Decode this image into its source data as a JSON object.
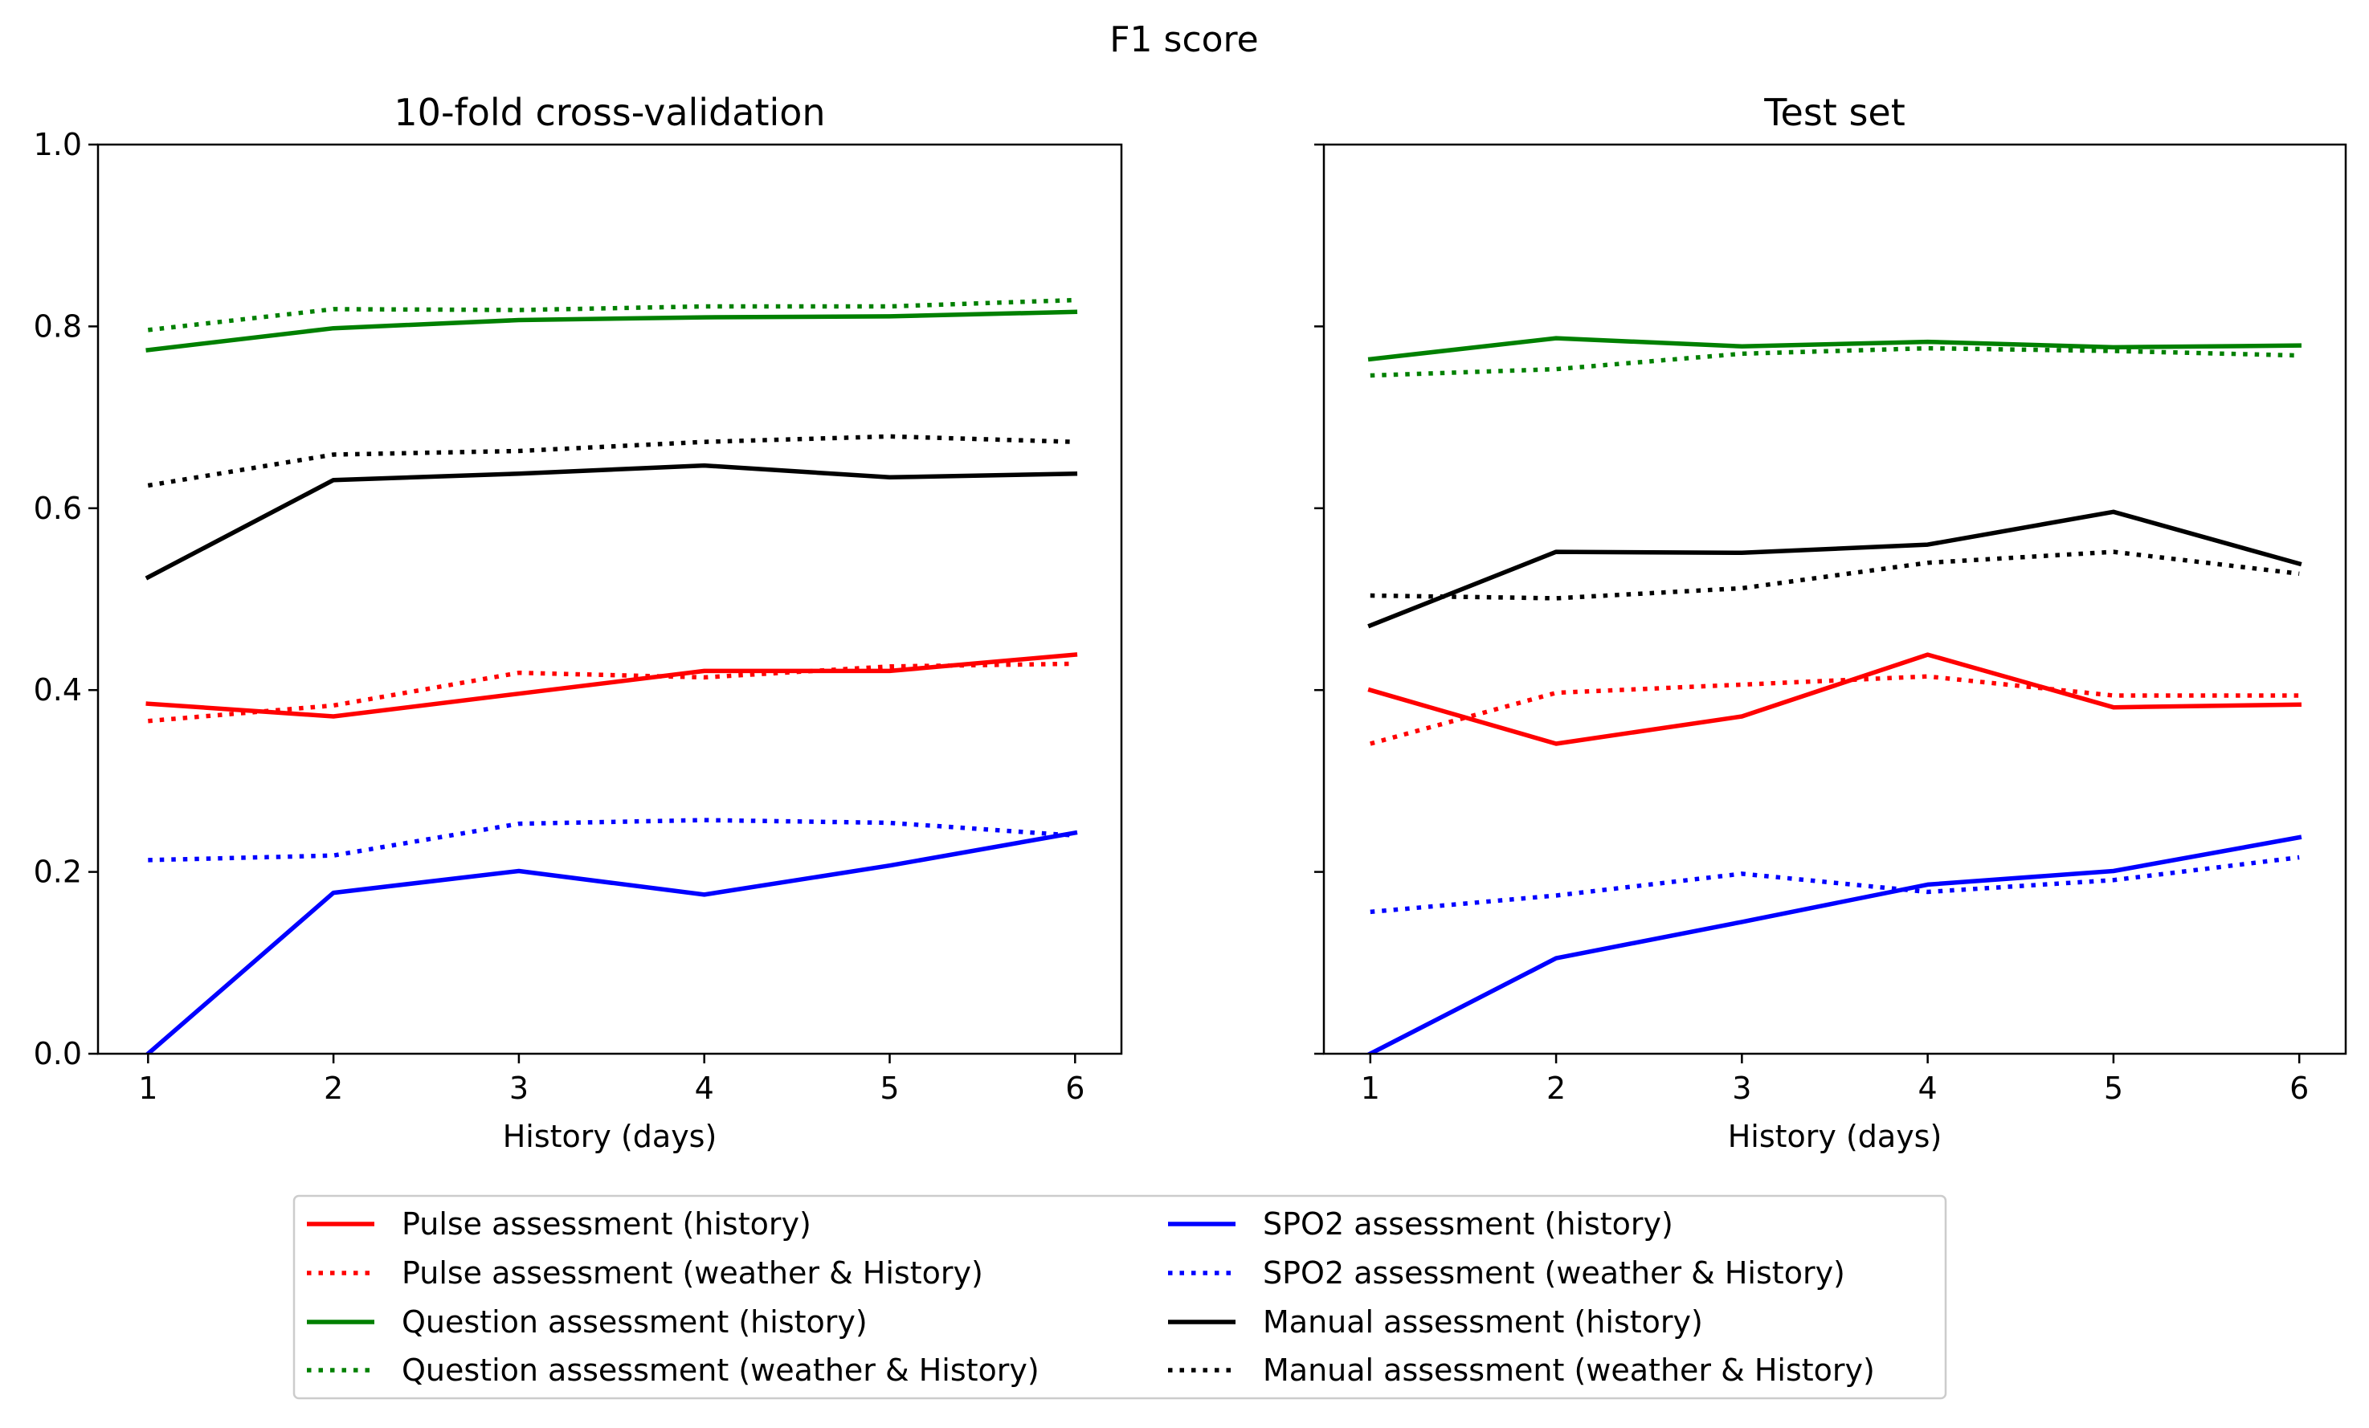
{
  "figure_title": "F1 score",
  "chart_data": [
    {
      "type": "line",
      "title": "10-fold cross-validation",
      "xlabel": "History (days)",
      "ylabel": "",
      "x": [
        1,
        2,
        3,
        4,
        5,
        6
      ],
      "xticks": [
        "1",
        "2",
        "3",
        "4",
        "5",
        "6"
      ],
      "yticks": [
        "0.0",
        "0.2",
        "0.4",
        "0.6",
        "0.8",
        "1.0"
      ],
      "ylim": [
        0,
        1
      ],
      "xlim": [
        0.73,
        6.25
      ],
      "grid": false,
      "series": [
        {
          "name": "Pulse assessment (history)",
          "color": "#ff0000",
          "style": "solid",
          "values": [
            0.385,
            0.371,
            0.396,
            0.421,
            0.421,
            0.439
          ]
        },
        {
          "name": "Pulse assessment (weather & History)",
          "color": "#ff0000",
          "style": "dotted",
          "values": [
            0.366,
            0.383,
            0.419,
            0.414,
            0.426,
            0.429
          ]
        },
        {
          "name": "Question assessment (history)",
          "color": "#008000",
          "style": "solid",
          "values": [
            0.774,
            0.798,
            0.807,
            0.81,
            0.811,
            0.816
          ]
        },
        {
          "name": "Question assessment (weather & History)",
          "color": "#008000",
          "style": "dotted",
          "values": [
            0.796,
            0.819,
            0.818,
            0.822,
            0.822,
            0.829
          ]
        },
        {
          "name": "SPO2 assessment (history)",
          "color": "#0000ff",
          "style": "solid",
          "values": [
            0.0,
            0.177,
            0.201,
            0.175,
            0.207,
            0.243
          ]
        },
        {
          "name": "SPO2 assessment (weather & History)",
          "color": "#0000ff",
          "style": "dotted",
          "values": [
            0.213,
            0.218,
            0.253,
            0.257,
            0.254,
            0.24
          ]
        },
        {
          "name": "Manual assessment (history)",
          "color": "#000000",
          "style": "solid",
          "values": [
            0.524,
            0.631,
            0.638,
            0.647,
            0.634,
            0.638
          ]
        },
        {
          "name": "Manual assessment (weather & History)",
          "color": "#000000",
          "style": "dotted",
          "values": [
            0.625,
            0.659,
            0.663,
            0.673,
            0.679,
            0.673
          ]
        }
      ]
    },
    {
      "type": "line",
      "title": "Test set",
      "xlabel": "History (days)",
      "ylabel": "",
      "x": [
        1,
        2,
        3,
        4,
        5,
        6
      ],
      "xticks": [
        "1",
        "2",
        "3",
        "4",
        "5",
        "6"
      ],
      "yticks": [],
      "ylim": [
        0,
        1
      ],
      "xlim": [
        0.75,
        6.25
      ],
      "grid": false,
      "series": [
        {
          "name": "Pulse assessment (history)",
          "color": "#ff0000",
          "style": "solid",
          "values": [
            0.4,
            0.341,
            0.371,
            0.439,
            0.381,
            0.384
          ]
        },
        {
          "name": "Pulse assessment (weather & History)",
          "color": "#ff0000",
          "style": "dotted",
          "values": [
            0.341,
            0.397,
            0.406,
            0.415,
            0.394,
            0.394
          ]
        },
        {
          "name": "Question assessment (history)",
          "color": "#008000",
          "style": "solid",
          "values": [
            0.764,
            0.787,
            0.778,
            0.783,
            0.777,
            0.779
          ]
        },
        {
          "name": "Question assessment (weather & History)",
          "color": "#008000",
          "style": "dotted",
          "values": [
            0.746,
            0.753,
            0.77,
            0.776,
            0.773,
            0.768
          ]
        },
        {
          "name": "SPO2 assessment (history)",
          "color": "#0000ff",
          "style": "solid",
          "values": [
            0.0,
            0.105,
            0.145,
            0.186,
            0.201,
            0.238
          ]
        },
        {
          "name": "SPO2 assessment (weather & History)",
          "color": "#0000ff",
          "style": "dotted",
          "values": [
            0.156,
            0.174,
            0.198,
            0.178,
            0.191,
            0.216
          ]
        },
        {
          "name": "Manual assessment (history)",
          "color": "#000000",
          "style": "solid",
          "values": [
            0.471,
            0.552,
            0.551,
            0.56,
            0.596,
            0.539
          ]
        },
        {
          "name": "Manual assessment (weather & History)",
          "color": "#000000",
          "style": "dotted",
          "values": [
            0.504,
            0.501,
            0.512,
            0.54,
            0.552,
            0.528
          ]
        }
      ]
    }
  ],
  "legend": {
    "placement": "bottom-center",
    "columns": 2,
    "entries": [
      {
        "label": "Pulse assessment (history)",
        "color": "#ff0000",
        "style": "solid"
      },
      {
        "label": "Pulse assessment (weather & History)",
        "color": "#ff0000",
        "style": "dotted"
      },
      {
        "label": "Question assessment (history)",
        "color": "#008000",
        "style": "solid"
      },
      {
        "label": "Question assessment (weather & History)",
        "color": "#008000",
        "style": "dotted"
      },
      {
        "label": "SPO2 assessment (history)",
        "color": "#0000ff",
        "style": "solid"
      },
      {
        "label": "SPO2 assessment (weather & History)",
        "color": "#0000ff",
        "style": "dotted"
      },
      {
        "label": "Manual assessment (history)",
        "color": "#000000",
        "style": "solid"
      },
      {
        "label": "Manual assessment (weather & History)",
        "color": "#000000",
        "style": "dotted"
      }
    ]
  }
}
